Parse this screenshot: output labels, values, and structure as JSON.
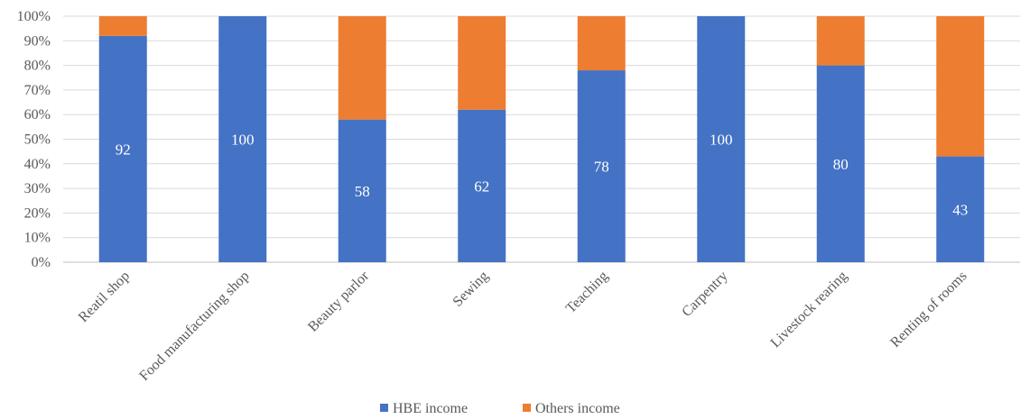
{
  "chart_data": {
    "type": "bar",
    "stacked": true,
    "percent": true,
    "categories": [
      "Reatil shop",
      "Food manufacturing shop",
      "Beauty parlor",
      "Sewing",
      "Teaching",
      "Carpentry",
      "Livestock rearing",
      "Renting of rooms"
    ],
    "series": [
      {
        "name": "HBE income",
        "color": "#4472C4",
        "values": [
          92,
          100,
          58,
          62,
          78,
          100,
          80,
          43
        ]
      },
      {
        "name": "Others income",
        "color": "#ED7D31",
        "values": [
          8,
          0,
          42,
          38,
          22,
          0,
          20,
          57
        ]
      }
    ],
    "data_labels": [
      "92",
      "100",
      "58",
      "62",
      "78",
      "100",
      "80",
      "43"
    ],
    "y_ticks": [
      "0%",
      "10%",
      "20%",
      "30%",
      "40%",
      "50%",
      "60%",
      "70%",
      "80%",
      "90%",
      "100%"
    ],
    "ylim": [
      0,
      100
    ],
    "grid": true,
    "legend_position": "bottom",
    "title": "",
    "xlabel": "",
    "ylabel": ""
  }
}
